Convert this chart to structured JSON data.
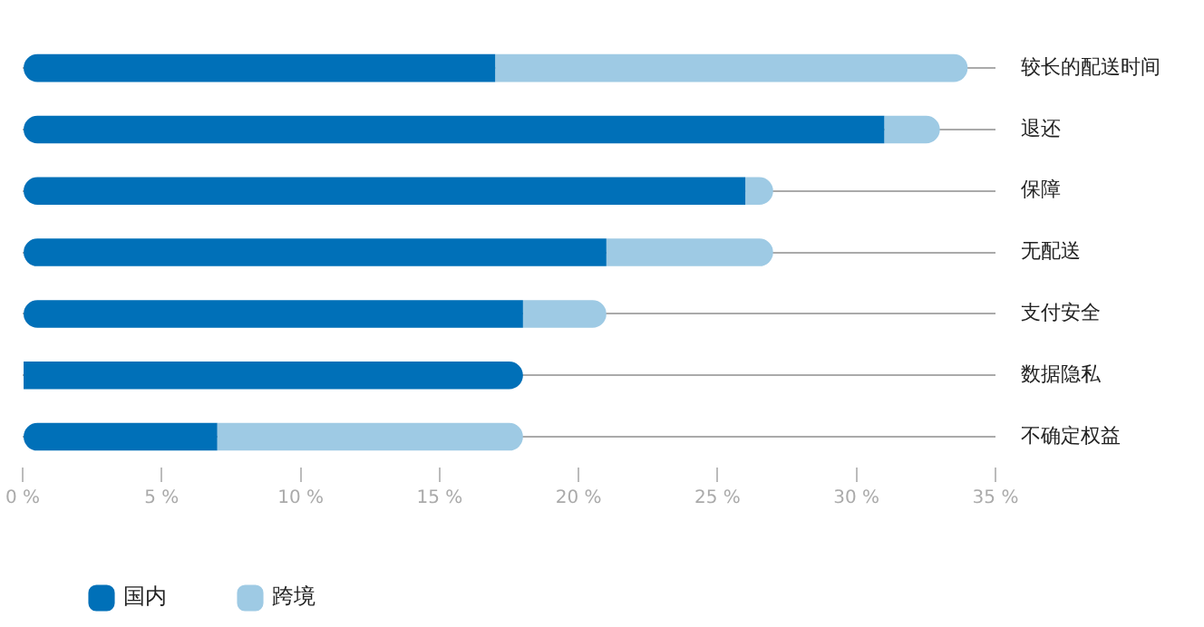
{
  "chart_data": {
    "type": "bar",
    "orientation": "horizontal",
    "stacked": true,
    "categories": [
      "较长的配送时间",
      "退还",
      "保障",
      "无配送",
      "支付安全",
      "数据隐私",
      "不确定权益"
    ],
    "series": [
      {
        "name": "国内",
        "color": "#0070b8",
        "values": [
          17,
          31,
          26,
          21,
          18,
          18,
          7
        ]
      },
      {
        "name": "跨境",
        "color": "#9ecae4",
        "values": [
          17,
          2,
          1,
          6,
          3,
          0,
          11
        ]
      }
    ],
    "xlim": [
      0,
      35
    ],
    "xticks": [
      {
        "value": 0,
        "label": "0 %"
      },
      {
        "value": 5,
        "label": "5 %"
      },
      {
        "value": 10,
        "label": "10 %"
      },
      {
        "value": 15,
        "label": "15 %"
      },
      {
        "value": 20,
        "label": "20 %"
      },
      {
        "value": 25,
        "label": "25 %"
      },
      {
        "value": 30,
        "label": "30 %"
      },
      {
        "value": 35,
        "label": "35 %"
      }
    ],
    "grid": "y",
    "legend": "bottom left"
  }
}
